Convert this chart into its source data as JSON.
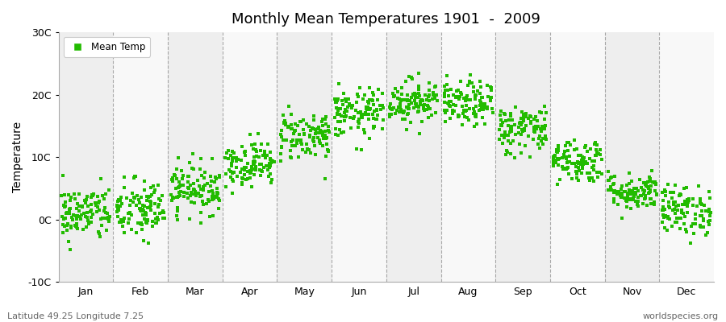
{
  "title": "Monthly Mean Temperatures 1901  -  2009",
  "ylabel": "Temperature",
  "subtitle_left": "Latitude 49.25 Longitude 7.25",
  "subtitle_right": "worldspecies.org",
  "legend_label": "Mean Temp",
  "years": 109,
  "dot_color": "#22bb00",
  "dot_size": 6,
  "ylim": [
    -10,
    30
  ],
  "yticks": [
    -10,
    0,
    10,
    20,
    30
  ],
  "ytick_labels": [
    "-10C",
    "0C",
    "10C",
    "20C",
    "30C"
  ],
  "months": [
    "Jan",
    "Feb",
    "Mar",
    "Apr",
    "May",
    "Jun",
    "Jul",
    "Aug",
    "Sep",
    "Oct",
    "Nov",
    "Dec"
  ],
  "mean_temps": [
    1.0,
    1.5,
    5.0,
    9.0,
    13.5,
    17.0,
    19.0,
    18.5,
    14.5,
    9.5,
    4.5,
    1.5
  ],
  "std_temps": [
    2.2,
    2.5,
    2.0,
    1.8,
    2.0,
    2.0,
    1.8,
    1.8,
    2.0,
    1.8,
    1.5,
    2.0
  ],
  "bg_color_odd": "#eeeeee",
  "bg_color_even": "#f8f8f8",
  "grid_color": "#777777",
  "grid_lw": 0.8
}
